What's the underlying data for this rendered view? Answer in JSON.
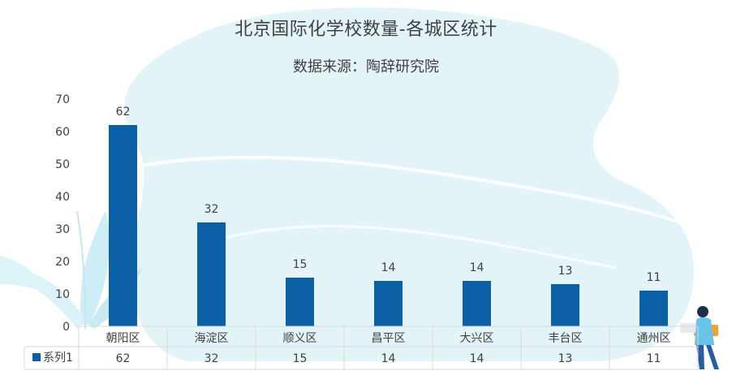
{
  "chart_data": {
    "type": "bar",
    "title": "北京国际化学校数量-各城区统计",
    "subtitle": "数据来源：陶辞研究院",
    "categories": [
      "朝阳区",
      "海淀区",
      "顺义区",
      "昌平区",
      "大兴区",
      "丰台区",
      "通州区"
    ],
    "series": [
      {
        "name": "系列1",
        "values": [
          62,
          32,
          15,
          14,
          14,
          13,
          11
        ]
      }
    ],
    "y_ticks": [
      "0",
      "10",
      "20",
      "30",
      "40",
      "50",
      "60",
      "70"
    ],
    "ylim": [
      0,
      70
    ],
    "grid": false,
    "legend": "data-table-left",
    "colors": {
      "bar": "#0a5fa5",
      "background_shape": "#e3f4f8",
      "table_line": "#d9d9d9"
    }
  }
}
